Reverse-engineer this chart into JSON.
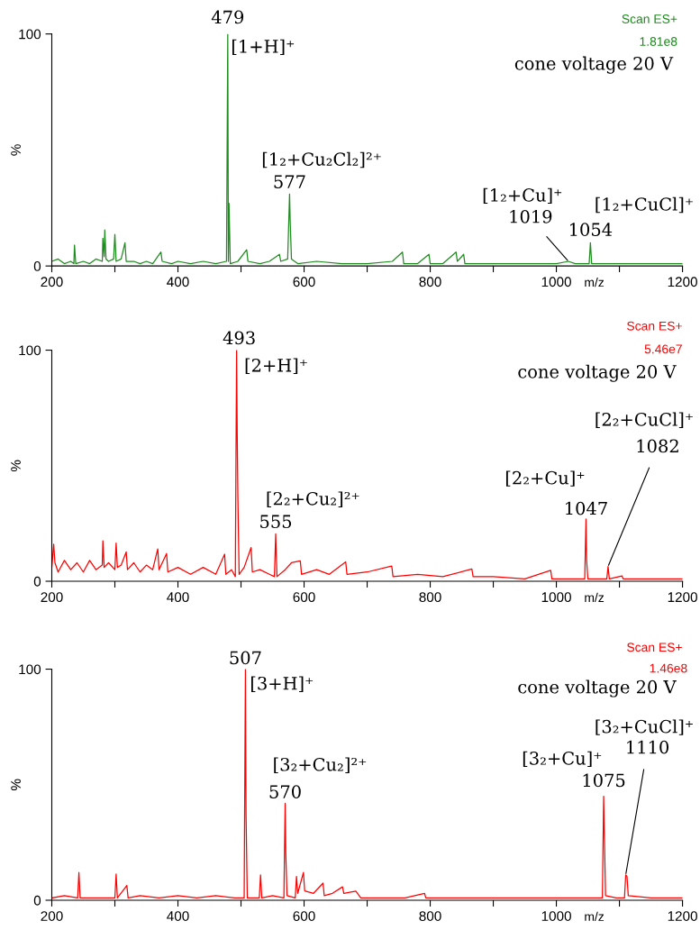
{
  "chart_data": [
    {
      "type": "line",
      "xlabel": "m/z",
      "ylabel": "%",
      "xlim": [
        200,
        1200
      ],
      "ylim": [
        0,
        100
      ],
      "xticks": [
        200,
        {
          "value": 300,
          "label": null
        },
        400,
        {
          "value": 500,
          "label": null
        },
        600,
        {
          "value": 700,
          "label": null
        },
        800,
        {
          "value": 900,
          "label": null
        },
        1000,
        {
          "value": 1100,
          "label": null
        },
        1200
      ],
      "yticks": [
        0,
        100
      ],
      "series": [
        {
          "color": "#1e8c1e",
          "x": [
            200,
            210,
            220,
            230,
            235,
            236,
            238,
            250,
            260,
            270,
            280,
            281,
            283,
            284,
            286,
            290,
            298,
            300,
            302,
            310,
            316,
            318,
            330,
            340,
            350,
            360,
            373,
            375,
            390,
            400,
            420,
            440,
            460,
            477,
            479,
            480,
            481,
            483,
            495,
            509,
            511,
            530,
            545,
            561,
            563,
            574,
            577,
            578,
            580,
            590,
            620,
            660,
            700,
            740,
            756,
            758,
            780,
            798,
            800,
            820,
            841,
            843,
            853,
            855,
            880,
            920,
            960,
            1000,
            1019,
            1030,
            1052,
            1054,
            1056,
            1080,
            1120,
            1160,
            1200
          ],
          "values": [
            2,
            3,
            1,
            2,
            1,
            9,
            1,
            2,
            1,
            3,
            2,
            12,
            4,
            15.5,
            3,
            2,
            3,
            13.6,
            2,
            3,
            10,
            2,
            2,
            1,
            2,
            1,
            6,
            2,
            1,
            2,
            1,
            2,
            1,
            2,
            100,
            2,
            27,
            1,
            2,
            7,
            2,
            1,
            2,
            5,
            2,
            3,
            31,
            19,
            3,
            1,
            2,
            1,
            1,
            2,
            6,
            1,
            1,
            5,
            1,
            1,
            6,
            2,
            5,
            1,
            1,
            1,
            1,
            1,
            2,
            1,
            1,
            10,
            1,
            1,
            1,
            1,
            1
          ]
        }
      ],
      "annotations": [
        "Scan ES+",
        "1.81e8",
        "cone voltage 20 V",
        "[1+H]⁺",
        "[1₂+Cu₂Cl₂]²⁺",
        "[1₂+Cu]⁺",
        "[1₂+CuCl]⁺",
        {
          "text": "479",
          "x": 479,
          "y": 100
        },
        {
          "text": "577",
          "x": 577,
          "y": 31
        },
        {
          "text": "1019",
          "x": 1019,
          "y": 2
        },
        {
          "text": "1054",
          "x": 1054,
          "y": 10
        }
      ]
    },
    {
      "type": "line",
      "xlabel": "m/z",
      "ylabel": "%",
      "xlim": [
        200,
        1200
      ],
      "ylim": [
        0,
        100
      ],
      "xticks": [
        200,
        {
          "value": 300,
          "label": null
        },
        400,
        {
          "value": 500,
          "label": null
        },
        600,
        {
          "value": 700,
          "label": null
        },
        800,
        {
          "value": 900,
          "label": null
        },
        1000,
        {
          "value": 1100,
          "label": null
        },
        1200
      ],
      "yticks": [
        0,
        100
      ],
      "series": [
        {
          "color": "#ff0000",
          "x": [
            200,
            203,
            205,
            210,
            220,
            230,
            240,
            250,
            260,
            270,
            280,
            281,
            283,
            290,
            300,
            302,
            304,
            310,
            318,
            320,
            330,
            340,
            350,
            360,
            368,
            370,
            382,
            384,
            400,
            420,
            440,
            460,
            474,
            476,
            485,
            491,
            493,
            494,
            495,
            497,
            505,
            516,
            518,
            530,
            545,
            553,
            555,
            557,
            570,
            580,
            594,
            596,
            620,
            640,
            666,
            668,
            700,
            739,
            741,
            780,
            820,
            866,
            868,
            900,
            950,
            991,
            993,
            1020,
            1045,
            1047,
            1048,
            1050,
            1080,
            1082,
            1084,
            1104,
            1106,
            1150,
            1200
          ],
          "values": [
            6,
            16,
            8,
            4,
            9,
            5,
            8,
            4,
            9,
            5,
            7,
            17.5,
            6,
            8,
            5,
            16.5,
            6,
            7,
            12.7,
            5,
            8,
            4,
            7,
            5,
            14,
            5,
            12,
            4,
            6,
            3,
            6,
            3,
            11.7,
            3,
            5,
            2,
            100,
            63,
            37,
            3,
            6,
            14.6,
            4,
            5,
            3,
            2,
            20.5,
            2,
            5,
            8,
            8.8,
            3,
            5,
            3,
            8.4,
            3,
            4,
            6.6,
            2,
            3,
            2,
            5.3,
            2,
            2,
            1,
            4.7,
            1,
            1,
            1,
            27,
            9,
            1,
            1,
            6.4,
            1,
            2.3,
            1,
            1,
            1
          ]
        }
      ],
      "annotations": [
        "Scan ES+",
        "5.46e7",
        "cone voltage 20 V",
        "[2+H]⁺",
        "[2₂+Cu₂]²⁺",
        "[2₂+Cu]⁺",
        "[2₂+CuCl]⁺",
        {
          "text": "493",
          "x": 493,
          "y": 100
        },
        {
          "text": "555",
          "x": 555,
          "y": 20.5
        },
        {
          "text": "1047",
          "x": 1047,
          "y": 27
        },
        {
          "text": "1082",
          "x": 1082,
          "y": 6.4
        }
      ]
    },
    {
      "type": "line",
      "xlabel": "m/z",
      "ylabel": "%",
      "xlim": [
        200,
        1200
      ],
      "ylim": [
        0,
        100
      ],
      "xticks": [
        200,
        {
          "value": 300,
          "label": null
        },
        400,
        {
          "value": 500,
          "label": null
        },
        600,
        {
          "value": 700,
          "label": null
        },
        800,
        {
          "value": 900,
          "label": null
        },
        1000,
        {
          "value": 1100,
          "label": null
        },
        1200
      ],
      "yticks": [
        0,
        100
      ],
      "series": [
        {
          "color": "#ff0000",
          "x": [
            200,
            220,
            241,
            243,
            245,
            270,
            300,
            302,
            304,
            319,
            321,
            340,
            370,
            400,
            430,
            460,
            490,
            505,
            507,
            508,
            510,
            529,
            531,
            533,
            550,
            568,
            570,
            571,
            573,
            586,
            588,
            590,
            599,
            601,
            615,
            630,
            632,
            645,
            661,
            663,
            682,
            690,
            720,
            760,
            791,
            793,
            830,
            880,
            940,
            1000,
            1040,
            1073,
            1075,
            1076,
            1078,
            1095,
            1108,
            1110,
            1112,
            1114,
            1150,
            1200
          ],
          "values": [
            1,
            2,
            1,
            12,
            1,
            1,
            1,
            11.3,
            1,
            6.4,
            1,
            2,
            1,
            2,
            1,
            2,
            1,
            1,
            100,
            36.6,
            1,
            1,
            11,
            1,
            2,
            1,
            42,
            20,
            2,
            1,
            10.3,
            3,
            12,
            4,
            3,
            7.4,
            2,
            3,
            5.8,
            3,
            3.9,
            1,
            1,
            1,
            3,
            1,
            1,
            1,
            1,
            1,
            1,
            1,
            45,
            30,
            2,
            1,
            1,
            11,
            10.3,
            2,
            1,
            1
          ]
        }
      ],
      "annotations": [
        "Scan ES+",
        "1.46e8",
        "cone voltage 20 V",
        "[3+H]⁺",
        "[3₂+Cu₂]²⁺",
        "[3₂+Cu]⁺",
        "[3₂+CuCl]⁺",
        {
          "text": "507",
          "x": 507,
          "y": 100
        },
        {
          "text": "570",
          "x": 570,
          "y": 42
        },
        {
          "text": "1075",
          "x": 1075,
          "y": 45
        },
        {
          "text": "1110",
          "x": 1110,
          "y": 11
        }
      ]
    }
  ]
}
